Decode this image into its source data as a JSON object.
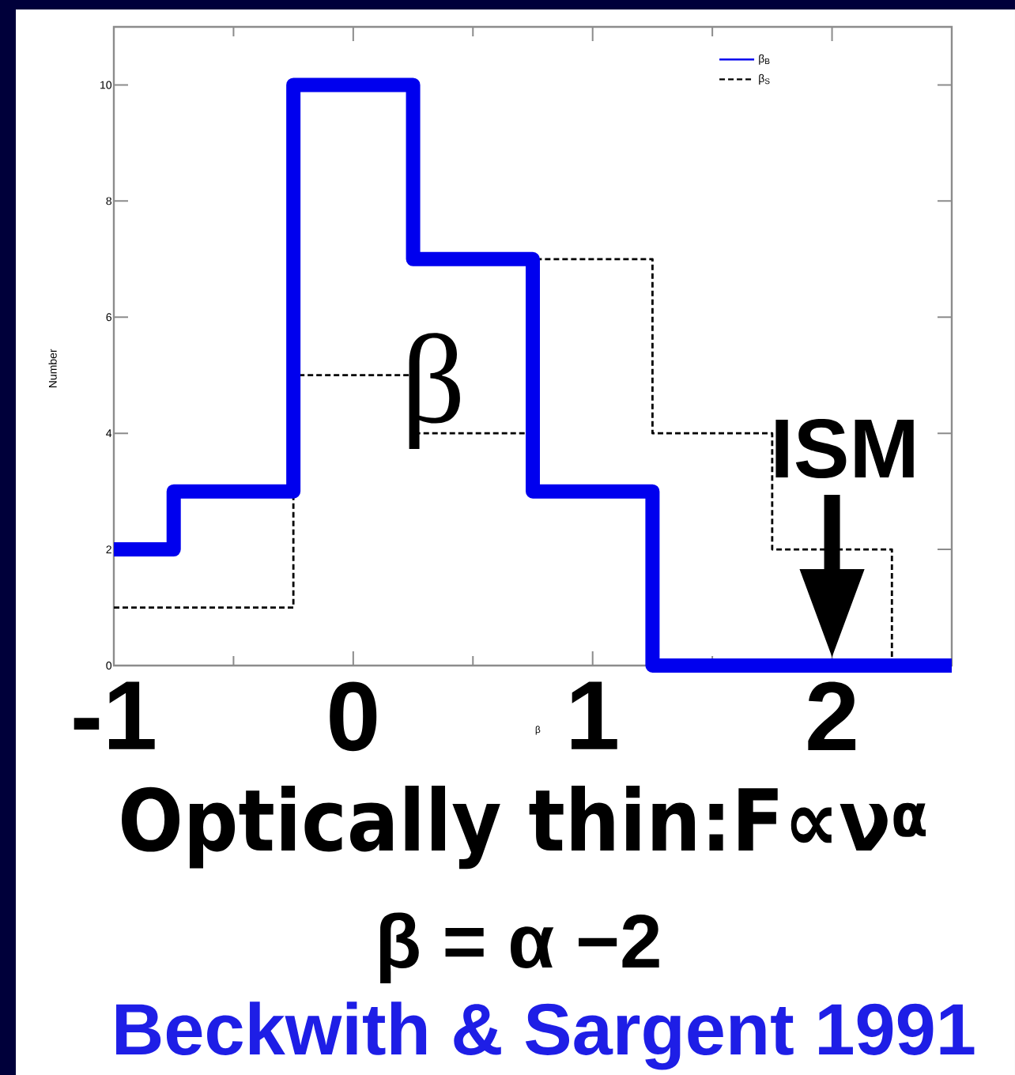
{
  "chart_data": {
    "type": "histogram",
    "xlabel": "β",
    "ylabel": "Number",
    "bins": [
      -1,
      -0.75,
      -0.25,
      0.25,
      0.75,
      1.25,
      1.75,
      2.25,
      2.5
    ],
    "series": [
      {
        "name": "β$_{B}$",
        "color": "#0000ee",
        "line_style": "solid",
        "values": [
          2,
          3,
          10,
          7,
          3,
          0,
          0,
          0
        ]
      },
      {
        "name": "β$_{S}$",
        "color": "#000000",
        "line_style": "dashed",
        "values": [
          1,
          1,
          5,
          4,
          7,
          4,
          2,
          0
        ]
      }
    ],
    "xlim": [
      -1,
      2.5
    ],
    "ylim": [
      0,
      11
    ],
    "xticks": [
      -1,
      0,
      1,
      2
    ],
    "yticks": [
      0,
      2,
      4,
      6,
      8,
      10
    ],
    "legend": "top right",
    "annotations": [
      "β",
      {
        "text": "ISM",
        "x": 2,
        "y": 0
      },
      "Optically thin:F∝ν$^{α}$",
      "β = α −2",
      "Beckwith & Sargent 1991"
    ]
  }
}
